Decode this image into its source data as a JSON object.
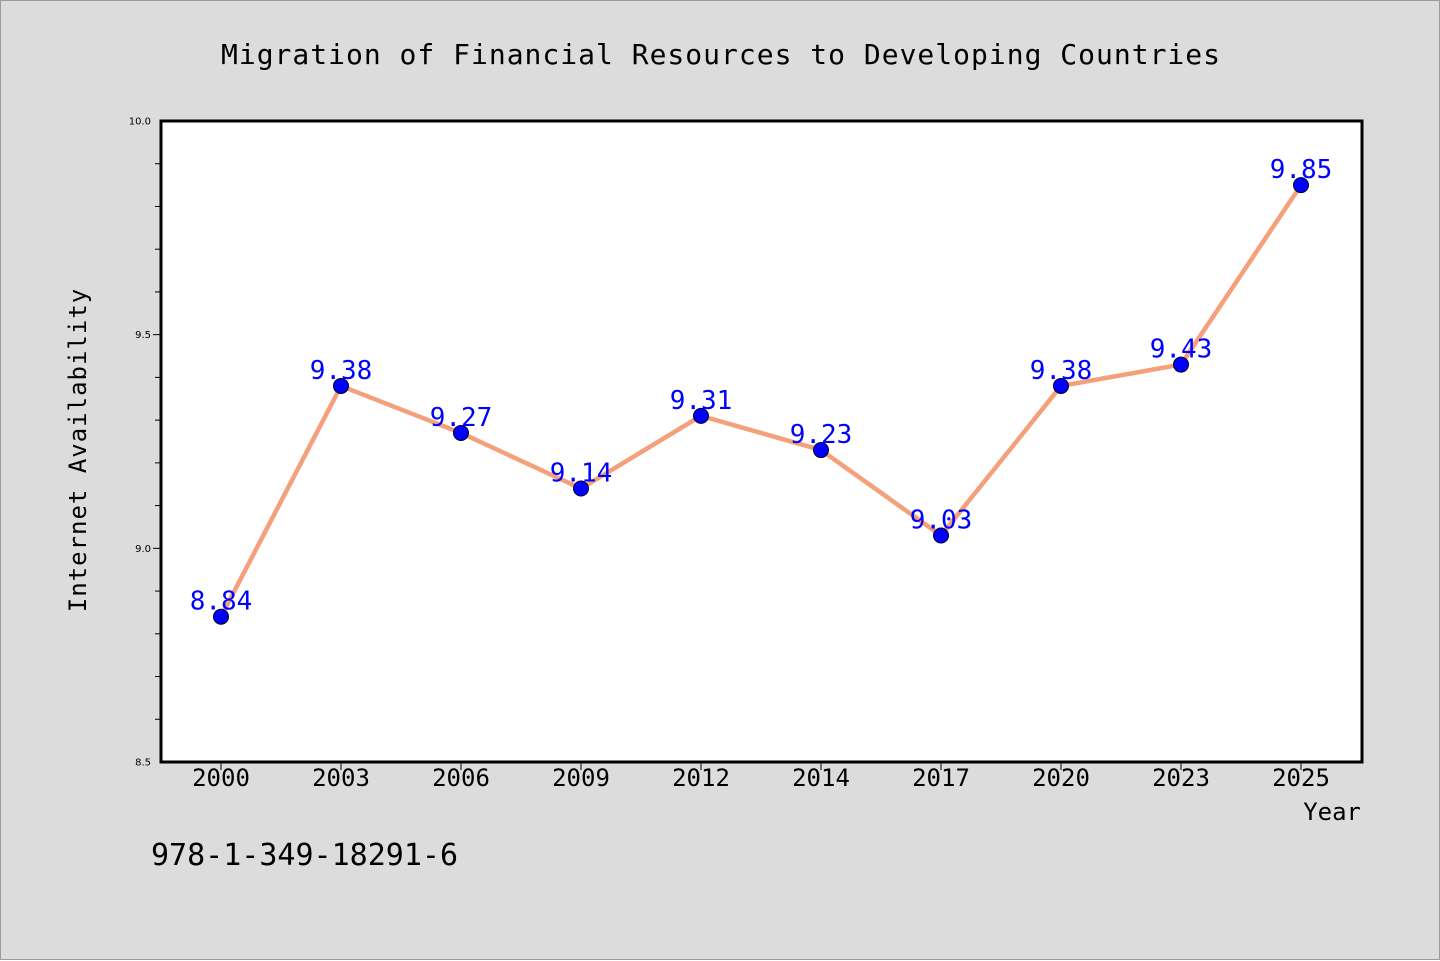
{
  "colors": {
    "background": "#dcdcdc",
    "plot_area": "#ffffff",
    "line": "#f4a07a",
    "marker": "#0000ff",
    "data_label": "#0000ff"
  },
  "footer_code": "978-1-349-18291-6",
  "chart_data": {
    "type": "line",
    "title": "Migration of Financial Resources to Developing Countries",
    "xlabel": "Year",
    "ylabel": "Internet Availability",
    "categories": [
      "2000",
      "2003",
      "2006",
      "2009",
      "2012",
      "2014",
      "2017",
      "2020",
      "2023",
      "2025"
    ],
    "series": [
      {
        "values": [
          8.84,
          9.38,
          9.27,
          9.14,
          9.31,
          9.23,
          9.03,
          9.38,
          9.43,
          9.85
        ]
      }
    ],
    "data_labels": [
      "8.84",
      "9.38",
      "9.27",
      "9.14",
      "9.31",
      "9.23",
      "9.03",
      "9.38",
      "9.43",
      "9.85"
    ],
    "ylim": [
      8.5,
      10.0
    ],
    "yticks": [
      "8.5",
      "9.0",
      "9.5",
      "10.0"
    ],
    "grid": false,
    "marker": "circle"
  }
}
